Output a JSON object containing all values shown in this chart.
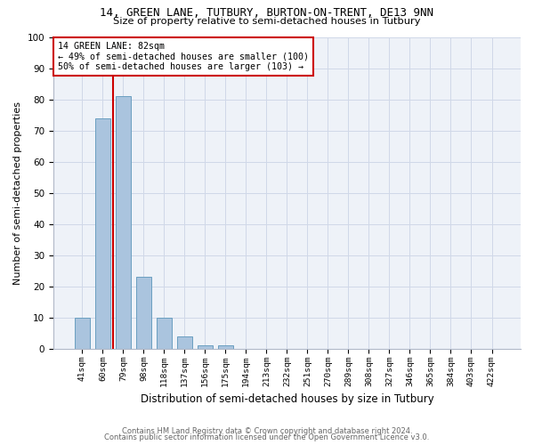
{
  "title1": "14, GREEN LANE, TUTBURY, BURTON-ON-TRENT, DE13 9NN",
  "title2": "Size of property relative to semi-detached houses in Tutbury",
  "xlabel": "Distribution of semi-detached houses by size in Tutbury",
  "ylabel": "Number of semi-detached properties",
  "footer1": "Contains HM Land Registry data © Crown copyright and database right 2024.",
  "footer2": "Contains public sector information licensed under the Open Government Licence v3.0.",
  "categories": [
    "41sqm",
    "60sqm",
    "79sqm",
    "98sqm",
    "118sqm",
    "137sqm",
    "156sqm",
    "175sqm",
    "194sqm",
    "213sqm",
    "232sqm",
    "251sqm",
    "270sqm",
    "289sqm",
    "308sqm",
    "327sqm",
    "346sqm",
    "365sqm",
    "384sqm",
    "403sqm",
    "422sqm"
  ],
  "values": [
    10,
    74,
    81,
    23,
    10,
    4,
    1,
    1,
    0,
    0,
    0,
    0,
    0,
    0,
    0,
    0,
    0,
    0,
    0,
    0,
    0
  ],
  "bar_color": "#aac4de",
  "bar_edge_color": "#6a9fc0",
  "vline_x": 1.5,
  "property_label": "14 GREEN LANE: 82sqm",
  "annotation_line1": "← 49% of semi-detached houses are smaller (100)",
  "annotation_line2": "50% of semi-detached houses are larger (103) →",
  "annotation_box_color": "#ffffff",
  "annotation_box_edge": "#cc0000",
  "vline_color": "#cc0000",
  "ylim": [
    0,
    100
  ],
  "yticks": [
    0,
    10,
    20,
    30,
    40,
    50,
    60,
    70,
    80,
    90,
    100
  ],
  "grid_color": "#d0d8e8",
  "bg_color": "#eef2f8"
}
